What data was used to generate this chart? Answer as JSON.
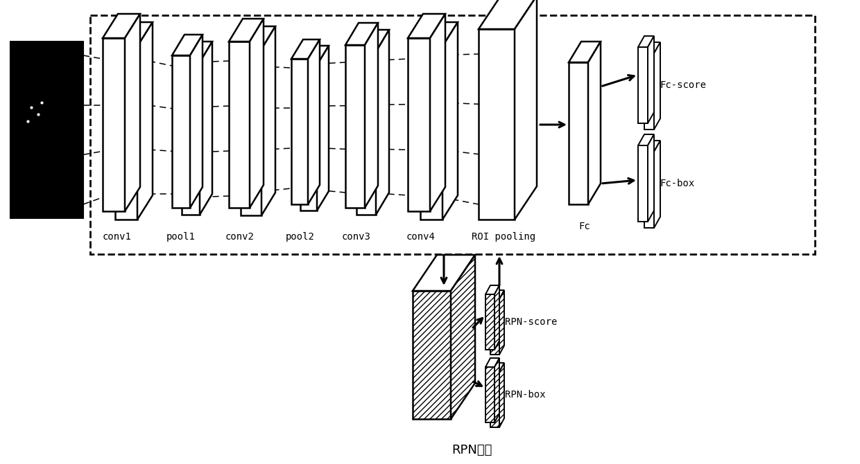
{
  "title": "RPN网络",
  "bg_color": "#ffffff",
  "figsize": [
    12.4,
    6.7
  ],
  "dpi": 100,
  "layers": [
    {
      "label": "conv1",
      "type": "conv"
    },
    {
      "label": "pool1",
      "type": "pool"
    },
    {
      "label": "conv2",
      "type": "conv"
    },
    {
      "label": "pool2",
      "type": "pool"
    },
    {
      "label": "conv3",
      "type": "conv"
    },
    {
      "label": "conv4",
      "type": "conv"
    },
    {
      "label": "ROI pooling",
      "type": "roi"
    }
  ],
  "fc_label": "Fc",
  "fc_score_label": "Fc-score",
  "fc_box_label": "Fc-box",
  "rpn_score_label": "RPN-score",
  "rpn_box_label": "RPN-box",
  "font_mono": "DejaVu Sans Mono",
  "font_label_size": 10,
  "font_title_size": 13
}
